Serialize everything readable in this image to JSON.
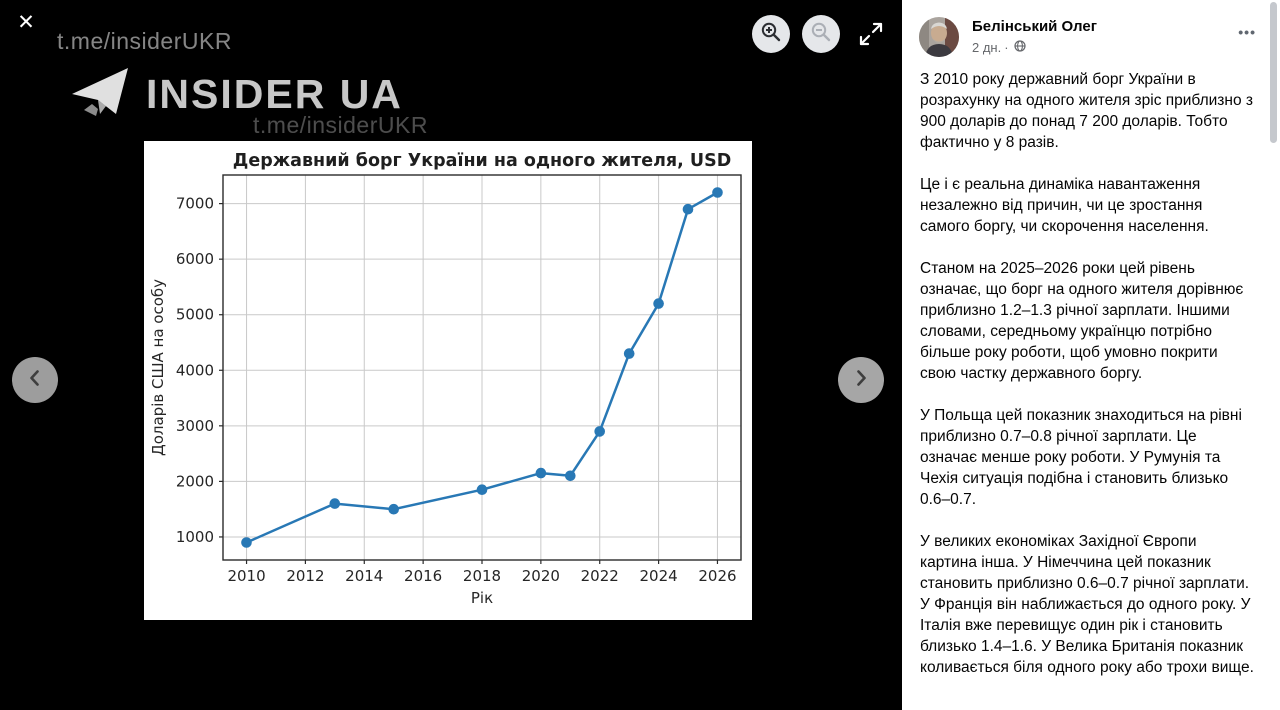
{
  "viewer": {
    "close_glyph": "✕",
    "watermark_top": "t.me/insiderUKR",
    "brand": "INSIDER UA",
    "watermark_mid": "t.me/insiderUKR",
    "menu_glyph": "•••"
  },
  "chart_data": {
    "type": "line",
    "title": "Державний борг України на одного жителя, USD",
    "xlabel": "Рік",
    "ylabel": "Доларів США на особу",
    "x": [
      2010,
      2013,
      2015,
      2018,
      2020,
      2021,
      2022,
      2023,
      2024,
      2025,
      2026
    ],
    "y": [
      900,
      1600,
      1500,
      1850,
      2150,
      2100,
      2900,
      4300,
      5200,
      6900,
      7200
    ],
    "xticks": [
      2010,
      2012,
      2014,
      2016,
      2018,
      2020,
      2022,
      2024,
      2026
    ],
    "yticks": [
      1000,
      2000,
      3000,
      4000,
      5000,
      6000,
      7000
    ],
    "xlim": [
      2009.2,
      2026.8
    ],
    "ylim": [
      585,
      7515
    ],
    "grid": true,
    "legend": false,
    "line_color": "#2878b5",
    "grid_color": "#c9c9c9",
    "spine_color": "#2b2b2b"
  },
  "post": {
    "author": "Белінський Олег",
    "timestamp": "2 дн.",
    "meta_separator": "·",
    "paragraphs": [
      "З 2010 року державний борг України в розрахунку на одного жителя зріс приблизно з 900 доларів до понад 7 200 доларів. Тобто фактично у 8 разів.",
      "Це і є реальна динаміка навантаження незалежно від причин, чи це зростання самого боргу, чи скорочення населення.",
      "Станом на 2025–2026 роки цей рівень означає, що борг на одного жителя дорівнює приблизно 1.2–1.3 річної зарплати. Іншими словами, середньому українцю потрібно більше року роботи, щоб умовно покрити свою частку державного боргу.",
      "У Польща цей показник знаходиться на рівні приблизно 0.7–0.8 річної зарплати. Це означає менше року роботи. У Румунія та Чехія ситуація подібна і становить близько 0.6–0.7.",
      "У великих економіках Західної Європи картина інша. У Німеччина цей показник становить приблизно 0.6–0.7 річної зарплати. У Франція він наближається до одного року. У Італія вже перевищує один рік і становить близько 1.4–1.6. У Велика Британія показник коливається біля одного року або трохи вище."
    ]
  }
}
